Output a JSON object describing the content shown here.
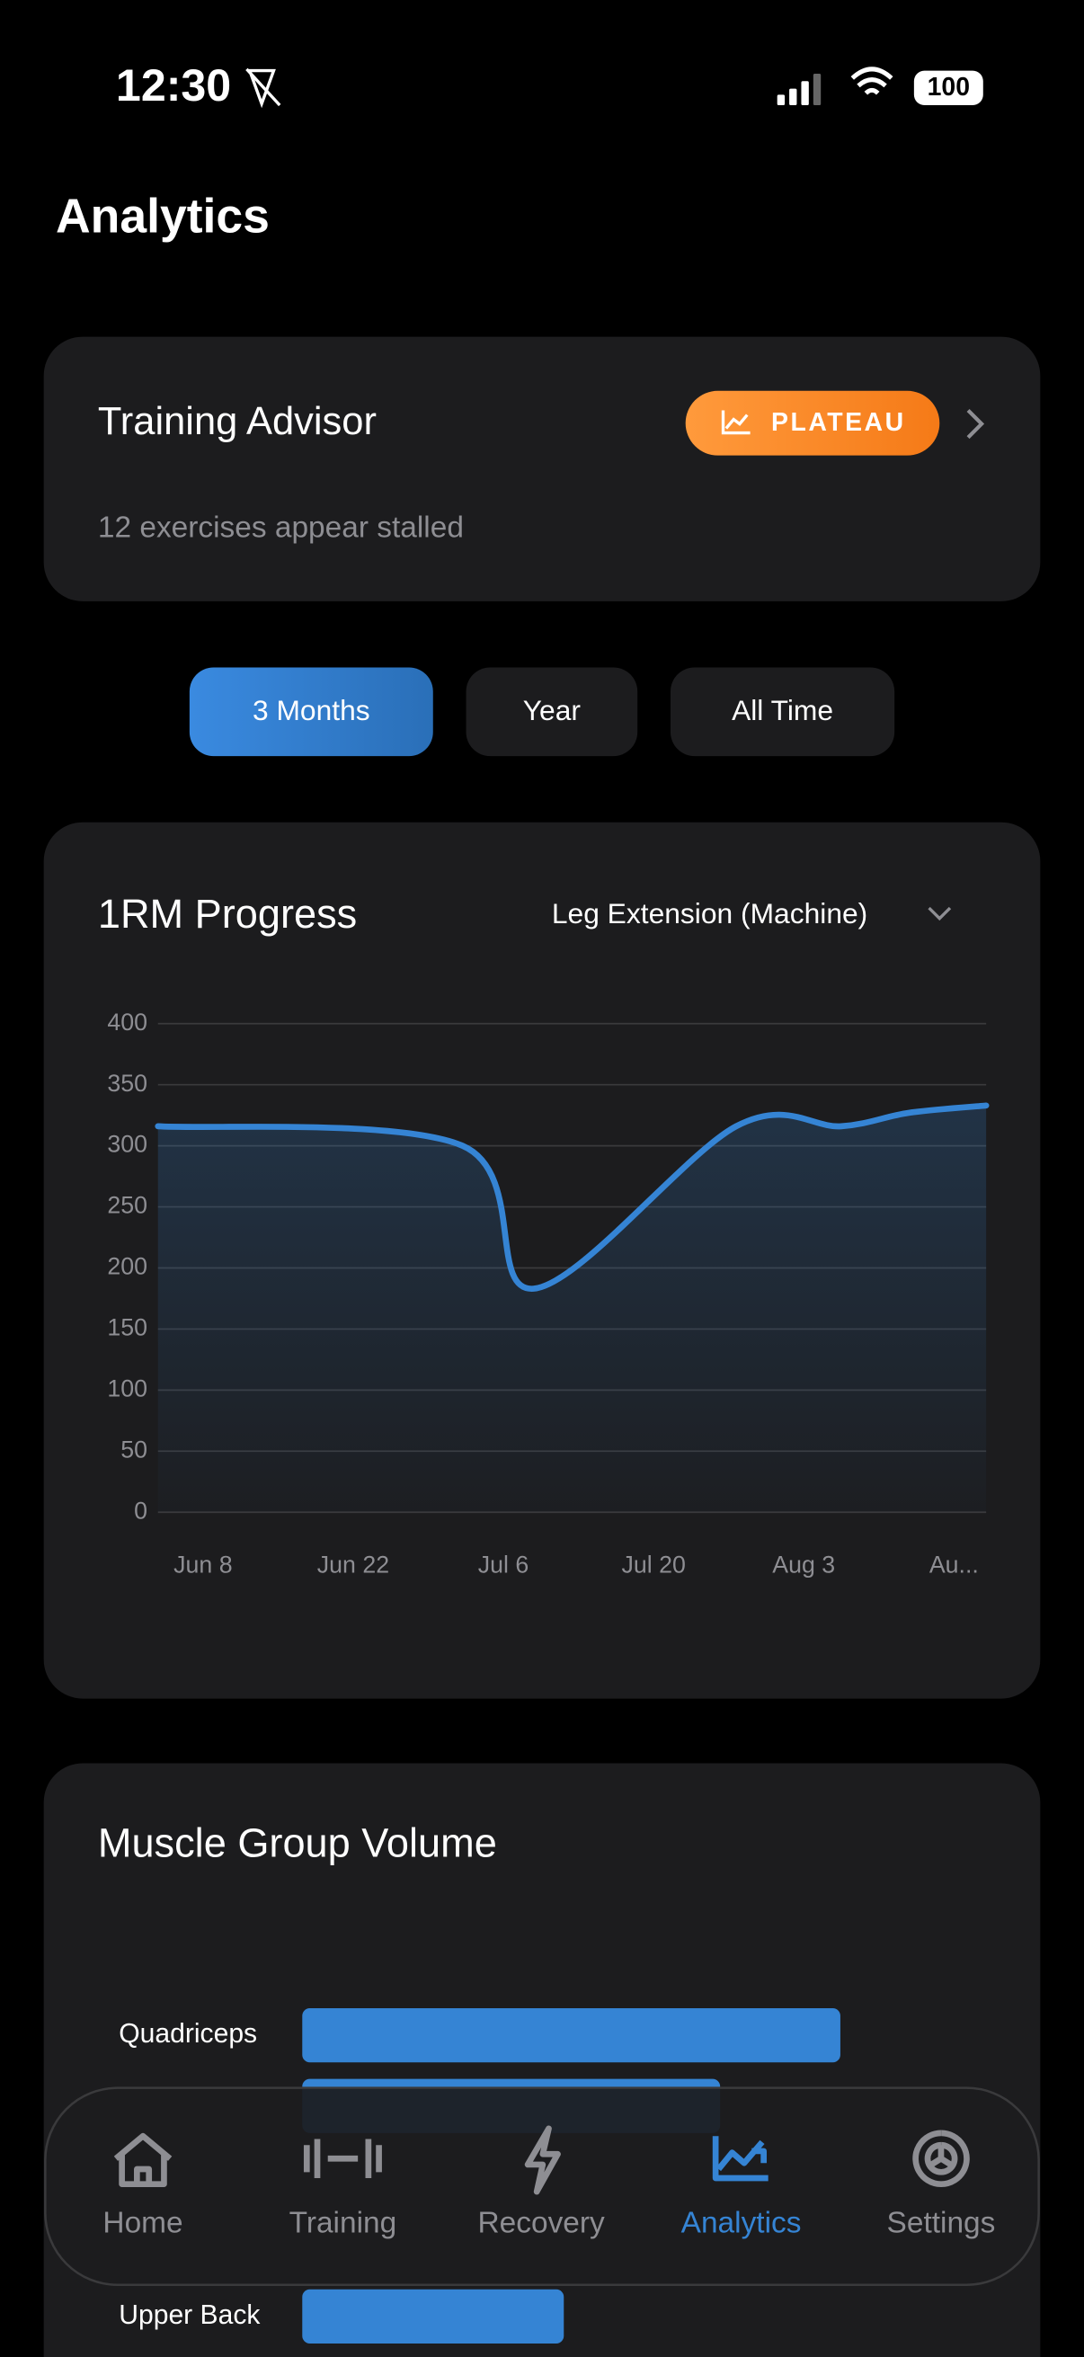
{
  "status": {
    "time": "12:30",
    "battery": "100"
  },
  "header": {
    "title": "Analytics"
  },
  "advisor": {
    "title": "Training Advisor",
    "badge": "PLATEAU",
    "message": "12 exercises appear stalled"
  },
  "range_tabs": [
    "3 Months",
    "Year",
    "All Time"
  ],
  "chart_data": [
    {
      "type": "line",
      "title": "1RM Progress",
      "selector": "Leg Extension (Machine)",
      "x": [
        -4.2,
        24.2,
        30.8,
        49.7,
        59.5,
        65.8,
        73
      ],
      "series": [
        {
          "color": "#3584d4",
          "values": [
            316,
            300,
            183,
            316,
            316,
            327,
            333
          ]
        }
      ],
      "xlim": [
        -4.2,
        73
      ],
      "xticks": [
        {
          "value": 0,
          "label": "Jun 8"
        },
        {
          "value": 14,
          "label": "Jun 22"
        },
        {
          "value": 28,
          "label": "Jul 6"
        },
        {
          "value": 42,
          "label": "Jul 20"
        },
        {
          "value": 56,
          "label": "Aug 3"
        },
        {
          "value": 70,
          "label": "Au..."
        }
      ],
      "ylim": [
        0,
        400
      ],
      "yticks": [
        0,
        50,
        100,
        150,
        200,
        250,
        300,
        350,
        400
      ],
      "grid": true
    },
    {
      "type": "hbar",
      "title": "Muscle Group Volume",
      "categories": [
        "Quadriceps",
        null,
        "Upper Back"
      ],
      "values": [
        358,
        278,
        174
      ],
      "color": "#3584d4"
    }
  ],
  "nav": {
    "items": [
      "Home",
      "Training",
      "Recovery",
      "Analytics",
      "Settings"
    ],
    "active": 3
  }
}
